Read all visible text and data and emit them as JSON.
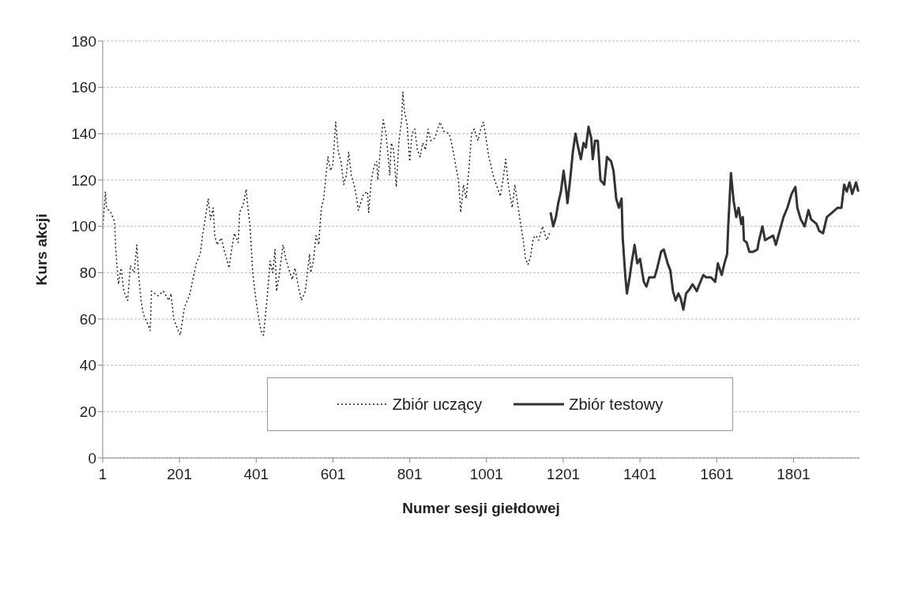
{
  "chart_data": {
    "type": "line",
    "xlabel": "Numer sesji giełdowej",
    "ylabel": "Kurs akcji",
    "xlim": [
      1,
      1973
    ],
    "xticks": [
      1,
      201,
      401,
      601,
      801,
      1001,
      1201,
      1401,
      1601,
      1801
    ],
    "ylim": [
      0,
      180
    ],
    "yticks": [
      0,
      20,
      40,
      60,
      80,
      100,
      120,
      140,
      160,
      180
    ],
    "grid": "y",
    "legend": "bottom",
    "series": [
      {
        "name": "Zbiór uczący",
        "color": "#222222",
        "line_style": "dotted",
        "x": [
          1,
          8,
          11,
          22,
          32,
          35,
          42,
          49,
          56,
          66,
          73,
          83,
          90,
          94,
          101,
          107,
          118,
          125,
          128,
          145,
          159,
          173,
          179,
          186,
          193,
          203,
          214,
          227,
          245,
          255,
          262,
          269,
          276,
          282,
          289,
          293,
          299,
          310,
          317,
          324,
          330,
          337,
          344,
          354,
          358,
          368,
          375,
          378,
          385,
          392,
          399,
          406,
          413,
          420,
          430,
          437,
          444,
          450,
          454,
          461,
          471,
          478,
          485,
          495,
          502,
          512,
          519,
          529,
          540,
          543,
          550,
          557,
          564,
          567,
          571,
          577,
          584,
          588,
          595,
          601,
          608,
          615,
          622,
          629,
          636,
          642,
          649,
          656,
          663,
          667,
          681,
          691,
          694,
          701,
          708,
          715,
          718,
          725,
          732,
          739,
          746,
          749,
          753,
          759,
          766,
          773,
          780,
          783,
          787,
          794,
          801,
          807,
          814,
          821,
          828,
          835,
          842,
          849,
          856,
          866,
          880,
          890,
          904,
          910,
          917,
          921,
          928,
          934,
          941,
          948,
          955,
          962,
          969,
          979,
          986,
          993,
          1000,
          1007,
          1013,
          1020,
          1031,
          1037,
          1044,
          1051,
          1058,
          1068,
          1075,
          1082,
          1089,
          1096,
          1103,
          1109,
          1116,
          1123,
          1130,
          1137,
          1147,
          1158,
          1168
        ],
        "values": [
          99,
          115,
          108,
          106,
          102,
          90,
          75,
          82,
          72,
          68,
          83,
          80,
          92,
          80,
          68,
          62,
          58,
          55,
          72,
          70,
          72,
          68,
          71,
          60,
          57,
          53,
          65,
          70,
          84,
          88,
          97,
          104,
          112,
          103,
          108,
          96,
          92,
          95,
          90,
          86,
          82,
          90,
          97,
          93,
          106,
          110,
          116,
          110,
          100,
          80,
          70,
          62,
          55,
          53,
          70,
          85,
          80,
          90,
          72,
          79,
          92,
          86,
          82,
          77,
          82,
          73,
          68,
          72,
          88,
          80,
          85,
          96,
          92,
          100,
          108,
          112,
          124,
          130,
          124,
          127,
          145,
          132,
          128,
          118,
          122,
          132,
          122,
          118,
          112,
          107,
          114,
          115,
          106,
          120,
          126,
          128,
          120,
          134,
          146,
          140,
          128,
          122,
          136,
          133,
          117,
          137,
          146,
          158,
          150,
          144,
          128,
          140,
          142,
          133,
          130,
          136,
          133,
          142,
          137,
          138,
          145,
          141,
          140,
          136,
          130,
          126,
          120,
          106,
          118,
          112,
          124,
          140,
          142,
          137,
          142,
          145,
          138,
          130,
          126,
          121,
          116,
          113,
          120,
          129,
          118,
          108,
          118,
          110,
          102,
          95,
          86,
          83.5,
          87,
          95,
          96,
          94,
          100,
          94,
          98
        ]
      },
      {
        "name": "Zbiór testowy",
        "color": "#333333",
        "line_style": "solid",
        "x": [
          1168,
          1175,
          1182,
          1188,
          1195,
          1202,
          1209,
          1212,
          1219,
          1226,
          1233,
          1240,
          1247,
          1254,
          1260,
          1267,
          1274,
          1278,
          1284,
          1291,
          1298,
          1308,
          1315,
          1326,
          1332,
          1339,
          1346,
          1353,
          1356,
          1363,
          1367,
          1374,
          1380,
          1387,
          1394,
          1401,
          1411,
          1418,
          1425,
          1439,
          1446,
          1456,
          1463,
          1473,
          1480,
          1487,
          1494,
          1501,
          1507,
          1514,
          1521,
          1531,
          1538,
          1549,
          1556,
          1566,
          1573,
          1586,
          1597,
          1604,
          1614,
          1621,
          1628,
          1631,
          1638,
          1645,
          1652,
          1658,
          1665,
          1669,
          1672,
          1679,
          1686,
          1696,
          1707,
          1710,
          1720,
          1727,
          1737,
          1748,
          1755,
          1765,
          1775,
          1785,
          1796,
          1806,
          1811,
          1820,
          1830,
          1840,
          1847,
          1861,
          1868,
          1878,
          1888,
          1902,
          1916,
          1926,
          1933,
          1940,
          1947,
          1954,
          1964,
          1970
        ],
        "values": [
          106,
          100,
          104,
          110,
          115,
          124,
          115,
          110,
          120,
          132,
          140,
          134,
          129,
          136,
          134,
          143,
          138,
          129,
          137,
          137,
          120,
          118,
          130,
          128,
          124,
          112,
          108,
          112,
          95,
          78,
          71,
          78,
          85,
          92,
          84,
          86,
          76,
          74,
          78,
          78,
          82,
          89,
          90,
          84,
          81,
          72,
          68,
          71,
          69,
          64,
          71,
          73,
          75,
          72,
          75,
          79,
          78,
          78,
          76,
          84,
          79,
          84,
          88,
          100,
          123,
          111,
          104,
          108,
          101,
          104,
          94,
          93,
          89,
          89,
          90,
          93,
          100,
          94,
          95,
          96,
          92,
          98,
          104,
          108,
          114,
          117,
          108,
          103,
          100,
          107,
          103,
          101,
          98,
          97,
          104,
          106,
          108,
          108,
          118,
          115,
          119,
          114,
          119,
          115
        ]
      }
    ]
  }
}
